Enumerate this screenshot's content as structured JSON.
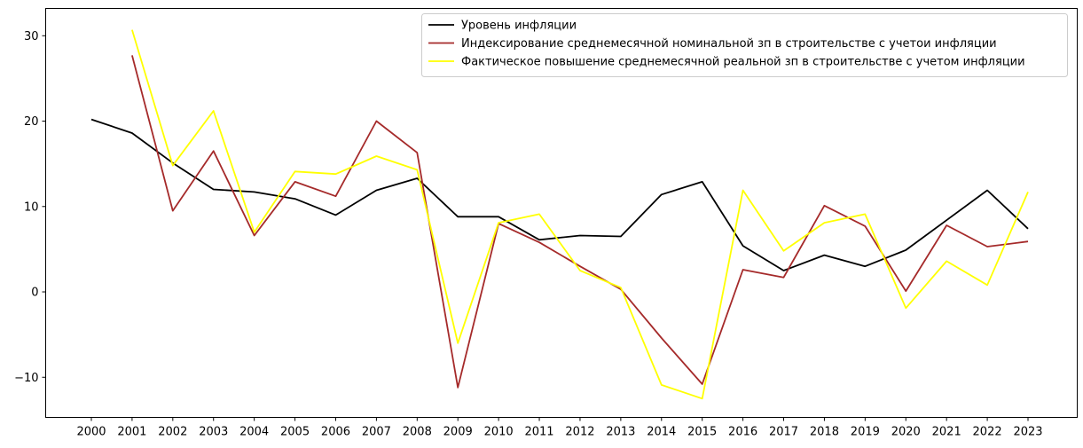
{
  "chart_data": {
    "type": "line",
    "title": "",
    "xlabel": "",
    "ylabel": "",
    "x": [
      "2000",
      "2001",
      "2002",
      "2003",
      "2004",
      "2005",
      "2006",
      "2007",
      "2008",
      "2009",
      "2010",
      "2011",
      "2012",
      "2013",
      "2014",
      "2015",
      "2016",
      "2017",
      "2018",
      "2019",
      "2020",
      "2021",
      "2022",
      "2023"
    ],
    "ylim": [
      -14.7,
      33.2
    ],
    "yticks": [
      -10,
      0,
      10,
      20,
      30
    ],
    "grid": false,
    "legend_position": "top-right",
    "series": [
      {
        "name": "Уровень инфляции",
        "color": "#000000",
        "values": [
          20.2,
          18.6,
          15.1,
          12.0,
          11.7,
          10.9,
          9.0,
          11.9,
          13.3,
          8.8,
          8.8,
          6.1,
          6.6,
          6.5,
          11.4,
          12.9,
          5.4,
          2.5,
          4.3,
          3.0,
          4.9,
          8.4,
          11.9,
          7.4
        ]
      },
      {
        "name": "Индексирование среднемесячной номинальной зп в строительстве с учетои инфляции",
        "color": "#a52a2a",
        "values": [
          null,
          27.7,
          9.5,
          16.5,
          6.6,
          12.9,
          11.2,
          20.0,
          16.3,
          -11.2,
          8.0,
          5.8,
          3.0,
          0.3,
          -5.4,
          -10.8,
          2.6,
          1.7,
          10.1,
          7.7,
          0.1,
          7.8,
          5.3,
          5.9
        ]
      },
      {
        "name": "Фактическое повышение среднемесячной реальной зп в строительстве с учетом инфляции",
        "color": "#ffff00",
        "values": [
          null,
          30.7,
          14.8,
          21.2,
          7.0,
          14.1,
          13.8,
          15.9,
          14.3,
          -6.0,
          8.1,
          9.1,
          2.5,
          0.5,
          -10.9,
          -12.5,
          11.9,
          4.8,
          8.1,
          9.1,
          -1.9,
          3.6,
          0.8,
          11.7
        ]
      }
    ]
  }
}
